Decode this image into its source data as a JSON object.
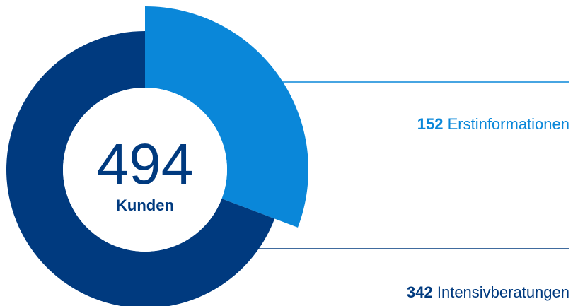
{
  "chart_data": {
    "type": "donut",
    "categories": [
      "Erstinformationen",
      "Intensivberatungen"
    ],
    "values": [
      152,
      342
    ],
    "colors": [
      "#0a87d9",
      "#003a7f"
    ],
    "total": 494,
    "total_label": "Kunden"
  }
}
